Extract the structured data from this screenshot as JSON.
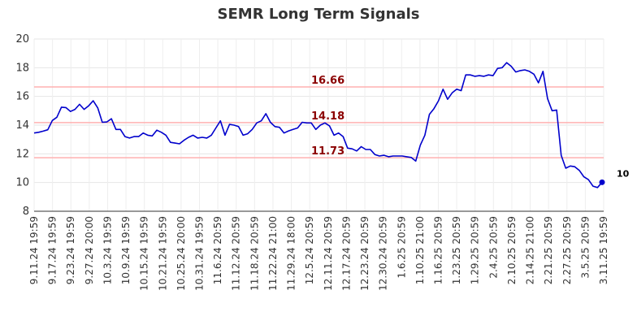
{
  "chart_data": {
    "type": "line",
    "title": "SEMR Long Term Signals",
    "xlabel": "",
    "ylabel": "",
    "ylim": [
      8,
      20
    ],
    "yticks": [
      "8",
      "10",
      "12",
      "14",
      "16",
      "18",
      "20"
    ],
    "grid": true,
    "x_tick_labels": [
      "9.11.24 19:59",
      "9.17.24 19:59",
      "9.23.24 19:59",
      "9.27.24 20:00",
      "10.3.24 19:59",
      "10.9.24 19:59",
      "10.15.24 19:59",
      "10.21.24 19:59",
      "10.25.24 20:00",
      "10.31.24 19:59",
      "11.6.24 20:59",
      "11.12.24 20:59",
      "11.18.24 20:59",
      "11.22.24 21:00",
      "11.29.24 18:00",
      "12.5.24 20:59",
      "12.11.24 20:59",
      "12.17.24 20:59",
      "12.23.24 20:59",
      "12.30.24 20:59",
      "1.6.25 20:59",
      "1.10.25 21:00",
      "1.16.25 20:59",
      "1.23.25 20:59",
      "1.29.25 20:59",
      "2.4.25 20:59",
      "2.10.25 20:59",
      "2.14.25 21:00",
      "2.21.25 20:59",
      "2.27.25 20:59",
      "3.5.25 20:59",
      "3.11.25 19:59"
    ],
    "series": [
      {
        "color": "#0000cc",
        "values": [
          13.45,
          13.5,
          13.58,
          13.68,
          14.32,
          14.55,
          15.25,
          15.22,
          14.95,
          15.1,
          15.45,
          15.1,
          15.35,
          15.7,
          15.2,
          14.2,
          14.22,
          14.45,
          13.7,
          13.7,
          13.2,
          13.1,
          13.2,
          13.2,
          13.45,
          13.3,
          13.25,
          13.65,
          13.5,
          13.3,
          12.8,
          12.75,
          12.7,
          12.95,
          13.15,
          13.3,
          13.1,
          13.15,
          13.1,
          13.3,
          13.8,
          14.3,
          13.3,
          14.05,
          14.0,
          13.9,
          13.3,
          13.4,
          13.7,
          14.15,
          14.3,
          14.8,
          14.2,
          13.9,
          13.85,
          13.45,
          13.6,
          13.7,
          13.8,
          14.2,
          14.15,
          14.15,
          13.7,
          14.0,
          14.15,
          13.95,
          13.3,
          13.45,
          13.2,
          12.4,
          12.35,
          12.2,
          12.5,
          12.3,
          12.3,
          11.95,
          11.85,
          11.9,
          11.8,
          11.85,
          11.85,
          11.85,
          11.8,
          11.75,
          11.5,
          12.6,
          13.3,
          14.75,
          15.15,
          15.7,
          16.5,
          15.8,
          16.25,
          16.5,
          16.4,
          17.5,
          17.5,
          17.4,
          17.45,
          17.4,
          17.5,
          17.45,
          17.95,
          18.0,
          18.35,
          18.1,
          17.7,
          17.8,
          17.85,
          17.75,
          17.55,
          16.95,
          17.75,
          15.85,
          15.0,
          15.05,
          11.9,
          11.0,
          11.15,
          11.1,
          10.85,
          10.4,
          10.2,
          9.75,
          9.65,
          10.02
        ]
      }
    ],
    "horizontal_lines": [
      {
        "value": 16.66,
        "label": "16.66",
        "color": "#ffb0b0"
      },
      {
        "value": 14.18,
        "label": "14.18",
        "color": "#ffb0b0"
      },
      {
        "value": 11.73,
        "label": "11.73",
        "color": "#ffb0b0"
      }
    ],
    "last_value_label": "10"
  }
}
